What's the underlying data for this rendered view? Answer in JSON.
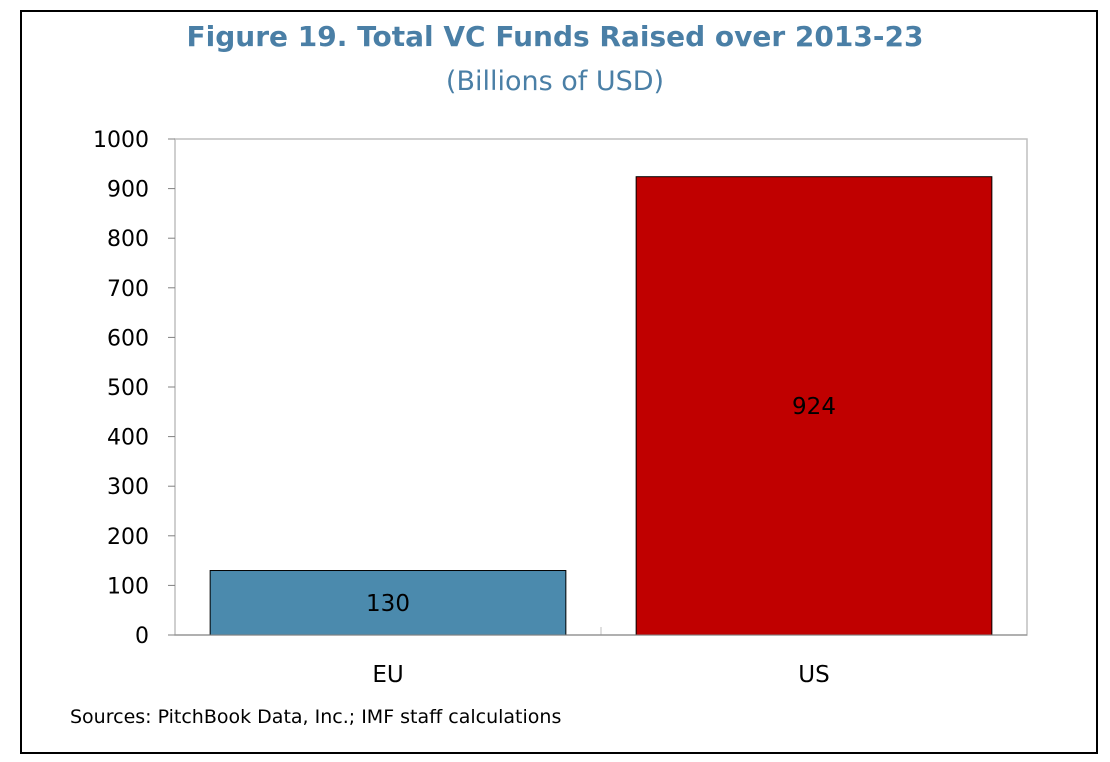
{
  "title": "Figure 19. Total VC Funds Raised over 2013-23",
  "subtitle": "(Billions of USD)",
  "source": "Sources: PitchBook Data, Inc.; IMF staff calculations",
  "colors": {
    "title": "#4a7fa6",
    "eu_bar": "#4b8aad",
    "us_bar": "#c00000"
  },
  "chart_data": {
    "type": "bar",
    "categories": [
      "EU",
      "US"
    ],
    "values": [
      130,
      924
    ],
    "data_labels": [
      "130",
      "924"
    ],
    "yticks": [
      "0",
      "100",
      "200",
      "300",
      "400",
      "500",
      "600",
      "700",
      "800",
      "900",
      "1000"
    ],
    "ylim": [
      0,
      1000
    ],
    "grid": false,
    "legend": "none"
  }
}
